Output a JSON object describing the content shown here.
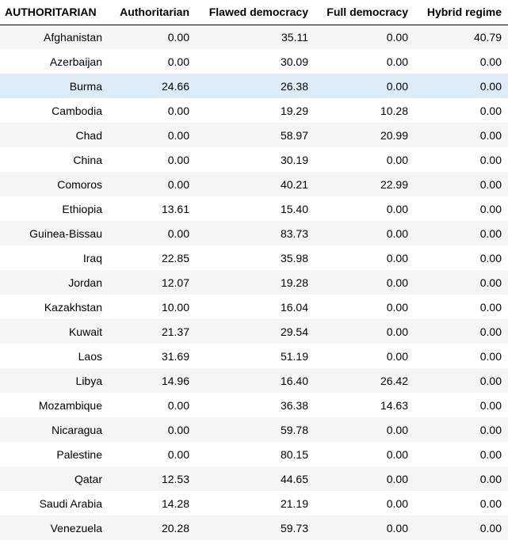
{
  "table": {
    "index_name": "AUTHORITARIAN",
    "columns": [
      "Authoritarian",
      "Flawed democracy",
      "Full democracy",
      "Hybrid regime"
    ],
    "highlighted_row": "Burma",
    "highlight_color": "#dcedf9",
    "rows": [
      {
        "country": "Afghanistan",
        "values": [
          "0.00",
          "35.11",
          "0.00",
          "40.79"
        ]
      },
      {
        "country": "Azerbaijan",
        "values": [
          "0.00",
          "30.09",
          "0.00",
          "0.00"
        ]
      },
      {
        "country": "Burma",
        "values": [
          "24.66",
          "26.38",
          "0.00",
          "0.00"
        ]
      },
      {
        "country": "Cambodia",
        "values": [
          "0.00",
          "19.29",
          "10.28",
          "0.00"
        ]
      },
      {
        "country": "Chad",
        "values": [
          "0.00",
          "58.97",
          "20.99",
          "0.00"
        ]
      },
      {
        "country": "China",
        "values": [
          "0.00",
          "30.19",
          "0.00",
          "0.00"
        ]
      },
      {
        "country": "Comoros",
        "values": [
          "0.00",
          "40.21",
          "22.99",
          "0.00"
        ]
      },
      {
        "country": "Ethiopia",
        "values": [
          "13.61",
          "15.40",
          "0.00",
          "0.00"
        ]
      },
      {
        "country": "Guinea-Bissau",
        "values": [
          "0.00",
          "83.73",
          "0.00",
          "0.00"
        ]
      },
      {
        "country": "Iraq",
        "values": [
          "22.85",
          "35.98",
          "0.00",
          "0.00"
        ]
      },
      {
        "country": "Jordan",
        "values": [
          "12.07",
          "19.28",
          "0.00",
          "0.00"
        ]
      },
      {
        "country": "Kazakhstan",
        "values": [
          "10.00",
          "16.04",
          "0.00",
          "0.00"
        ]
      },
      {
        "country": "Kuwait",
        "values": [
          "21.37",
          "29.54",
          "0.00",
          "0.00"
        ]
      },
      {
        "country": "Laos",
        "values": [
          "31.69",
          "51.19",
          "0.00",
          "0.00"
        ]
      },
      {
        "country": "Libya",
        "values": [
          "14.96",
          "16.40",
          "26.42",
          "0.00"
        ]
      },
      {
        "country": "Mozambique",
        "values": [
          "0.00",
          "36.38",
          "14.63",
          "0.00"
        ]
      },
      {
        "country": "Nicaragua",
        "values": [
          "0.00",
          "59.78",
          "0.00",
          "0.00"
        ]
      },
      {
        "country": "Palestine",
        "values": [
          "0.00",
          "80.15",
          "0.00",
          "0.00"
        ]
      },
      {
        "country": "Qatar",
        "values": [
          "12.53",
          "44.65",
          "0.00",
          "0.00"
        ]
      },
      {
        "country": "Saudi Arabia",
        "values": [
          "14.28",
          "21.19",
          "0.00",
          "0.00"
        ]
      },
      {
        "country": "Venezuela",
        "values": [
          "20.28",
          "59.73",
          "0.00",
          "0.00"
        ]
      }
    ]
  }
}
